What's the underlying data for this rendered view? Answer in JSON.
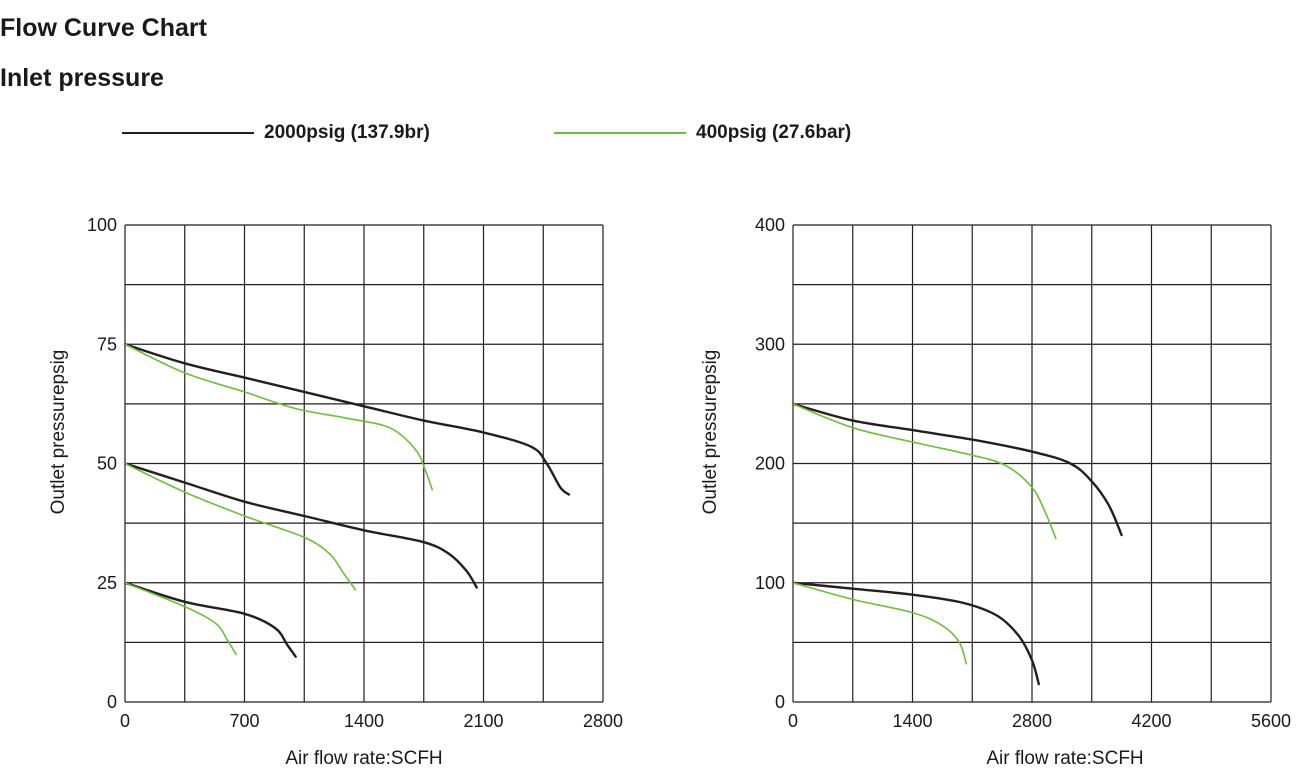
{
  "title": "Flow Curve Chart",
  "subtitle": "Inlet pressure",
  "legend": [
    {
      "label": "2000psig (137.9br)",
      "color": "#231f20"
    },
    {
      "label": "400psig (27.6bar)",
      "color": "#6cbf3c"
    }
  ],
  "chart_data": [
    {
      "type": "line",
      "xlabel": "Air flow rate:SCFH",
      "ylabel": "Outlet pressurepsig",
      "xlim": [
        0,
        2800
      ],
      "ylim": [
        0,
        100
      ],
      "xticks": [
        "0",
        "700",
        "1400",
        "2100",
        "2800"
      ],
      "yticks": [
        "0",
        "25",
        "50",
        "75",
        "100"
      ],
      "grid": true,
      "series": [
        {
          "legend_index": 0,
          "points": [
            [
              0,
              75
            ],
            [
              350,
              71
            ],
            [
              700,
              68
            ],
            [
              1050,
              65
            ],
            [
              1400,
              62
            ],
            [
              1750,
              59
            ],
            [
              2100,
              56.5
            ],
            [
              2380,
              53.5
            ],
            [
              2470,
              50
            ],
            [
              2550,
              45
            ],
            [
              2600,
              43.5
            ]
          ]
        },
        {
          "legend_index": 1,
          "points": [
            [
              0,
              75
            ],
            [
              350,
              69
            ],
            [
              700,
              65
            ],
            [
              1000,
              61.5
            ],
            [
              1300,
              59.5
            ],
            [
              1550,
              57.5
            ],
            [
              1700,
              53
            ],
            [
              1760,
              48.5
            ],
            [
              1800,
              44.5
            ]
          ]
        },
        {
          "legend_index": 0,
          "points": [
            [
              0,
              50
            ],
            [
              350,
              46
            ],
            [
              700,
              42
            ],
            [
              1050,
              39
            ],
            [
              1400,
              36
            ],
            [
              1750,
              33.5
            ],
            [
              1900,
              31
            ],
            [
              2000,
              27.5
            ],
            [
              2060,
              24
            ]
          ]
        },
        {
          "legend_index": 1,
          "points": [
            [
              0,
              50
            ],
            [
              350,
              44
            ],
            [
              700,
              39
            ],
            [
              1050,
              34.5
            ],
            [
              1200,
              31
            ],
            [
              1280,
              27
            ],
            [
              1350,
              23.5
            ]
          ]
        },
        {
          "legend_index": 0,
          "points": [
            [
              0,
              25
            ],
            [
              350,
              21
            ],
            [
              700,
              18.5
            ],
            [
              880,
              15.5
            ],
            [
              950,
              12
            ],
            [
              1000,
              9.5
            ]
          ]
        },
        {
          "legend_index": 1,
          "points": [
            [
              0,
              25
            ],
            [
              350,
              20
            ],
            [
              530,
              16.5
            ],
            [
              600,
              13
            ],
            [
              650,
              10
            ]
          ]
        }
      ]
    },
    {
      "type": "line",
      "xlabel": "Air flow rate:SCFH",
      "ylabel": "Outlet pressurepsig",
      "xlim": [
        0,
        5600
      ],
      "ylim": [
        0,
        400
      ],
      "xticks": [
        "0",
        "1400",
        "2800",
        "4200",
        "5600"
      ],
      "yticks": [
        "0",
        "100",
        "200",
        "300",
        "400"
      ],
      "grid": true,
      "series": [
        {
          "legend_index": 0,
          "points": [
            [
              0,
              250
            ],
            [
              700,
              236
            ],
            [
              1400,
              228
            ],
            [
              2100,
              220
            ],
            [
              2800,
              210
            ],
            [
              3250,
              200
            ],
            [
              3500,
              185
            ],
            [
              3700,
              165
            ],
            [
              3850,
              140
            ]
          ]
        },
        {
          "legend_index": 1,
          "points": [
            [
              0,
              250
            ],
            [
              700,
              230
            ],
            [
              1400,
              218
            ],
            [
              2100,
              207
            ],
            [
              2500,
              198
            ],
            [
              2800,
              180
            ],
            [
              2950,
              160
            ],
            [
              3080,
              137
            ]
          ]
        },
        {
          "legend_index": 0,
          "points": [
            [
              0,
              100
            ],
            [
              700,
              95
            ],
            [
              1400,
              90
            ],
            [
              2000,
              83
            ],
            [
              2400,
              72
            ],
            [
              2650,
              55
            ],
            [
              2800,
              35
            ],
            [
              2880,
              15
            ]
          ]
        },
        {
          "legend_index": 1,
          "points": [
            [
              0,
              100
            ],
            [
              700,
              86
            ],
            [
              1400,
              75
            ],
            [
              1750,
              64
            ],
            [
              1950,
              50
            ],
            [
              2030,
              32
            ]
          ]
        }
      ]
    }
  ]
}
